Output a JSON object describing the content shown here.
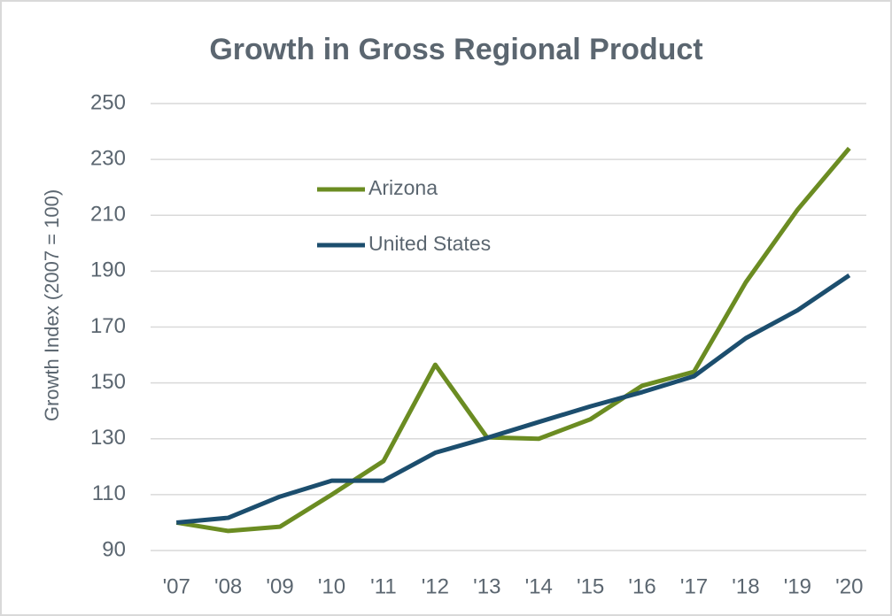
{
  "chart_data": {
    "type": "line",
    "title": "Growth in Gross Regional Product",
    "y_label": "Growth Index (2007 = 100)",
    "categories": [
      "'07",
      "'08",
      "'09",
      "'10",
      "'11",
      "'12",
      "'13",
      "'14",
      "'15",
      "'16",
      "'17",
      "'18",
      "'19",
      "'20"
    ],
    "series": [
      {
        "name": "Arizona",
        "color": "#6b8c22",
        "values": [
          100,
          97,
          98.5,
          110,
          122,
          156.5,
          130.5,
          130,
          137,
          149,
          154,
          186,
          212,
          234
        ]
      },
      {
        "name": "United States",
        "color": "#1c4e6e",
        "values": [
          100,
          101.7,
          109.3,
          115,
          115,
          125,
          130.3,
          136,
          141.6,
          146.7,
          152.4,
          166,
          176,
          188.5
        ]
      }
    ],
    "ylim": [
      90,
      250
    ],
    "yticks": [
      90,
      110,
      130,
      150,
      170,
      190,
      210,
      230,
      250
    ],
    "grid": true
  }
}
